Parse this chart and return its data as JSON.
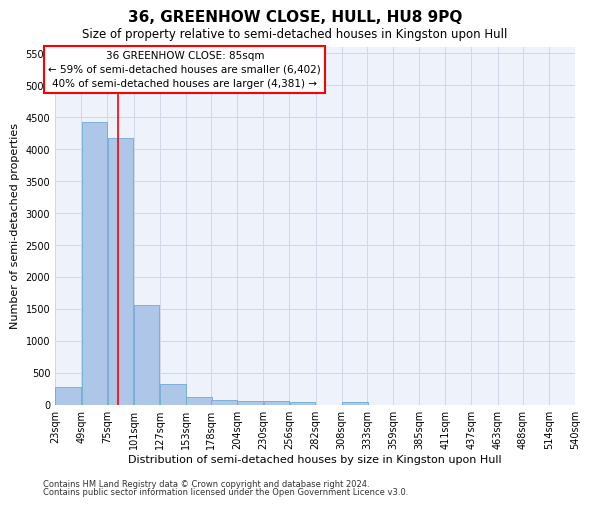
{
  "title": "36, GREENHOW CLOSE, HULL, HU8 9PQ",
  "subtitle": "Size of property relative to semi-detached houses in Kingston upon Hull",
  "xlabel": "Distribution of semi-detached houses by size in Kingston upon Hull",
  "ylabel": "Number of semi-detached properties",
  "footnote1": "Contains HM Land Registry data © Crown copyright and database right 2024.",
  "footnote2": "Contains public sector information licensed under the Open Government Licence v3.0.",
  "annotation_title": "36 GREENHOW CLOSE: 85sqm",
  "annotation_line1": "← 59% of semi-detached houses are smaller (6,402)",
  "annotation_line2": "40% of semi-detached houses are larger (4,381) →",
  "bar_left_edges": [
    23,
    49,
    75,
    101,
    127,
    153,
    178,
    204,
    230,
    256,
    282,
    308,
    333,
    359,
    385,
    411,
    437,
    463,
    488,
    514
  ],
  "bar_heights": [
    280,
    4430,
    4170,
    1560,
    320,
    120,
    80,
    60,
    60,
    50,
    0,
    50,
    0,
    0,
    0,
    0,
    0,
    0,
    0,
    0
  ],
  "bin_width": 26,
  "bar_color": "#aec6e8",
  "bar_edge_color": "#6aaad4",
  "grid_color": "#d0d8e8",
  "background_color": "#eef2fa",
  "red_line_x": 85,
  "xlim": [
    23,
    540
  ],
  "ylim": [
    0,
    5600
  ],
  "yticks": [
    0,
    500,
    1000,
    1500,
    2000,
    2500,
    3000,
    3500,
    4000,
    4500,
    5000,
    5500
  ],
  "xtick_labels": [
    "23sqm",
    "49sqm",
    "75sqm",
    "101sqm",
    "127sqm",
    "153sqm",
    "178sqm",
    "204sqm",
    "230sqm",
    "256sqm",
    "282sqm",
    "308sqm",
    "333sqm",
    "359sqm",
    "385sqm",
    "411sqm",
    "437sqm",
    "463sqm",
    "488sqm",
    "514sqm",
    "540sqm"
  ],
  "xtick_positions": [
    23,
    49,
    75,
    101,
    127,
    153,
    178,
    204,
    230,
    256,
    282,
    308,
    333,
    359,
    385,
    411,
    437,
    463,
    488,
    514,
    540
  ],
  "annotation_box_color": "white",
  "annotation_box_edge": "red",
  "red_line_color": "red",
  "title_fontsize": 11,
  "subtitle_fontsize": 8.5,
  "axis_label_fontsize": 8,
  "tick_fontsize": 7,
  "annotation_fontsize": 7.5,
  "footnote_fontsize": 6
}
